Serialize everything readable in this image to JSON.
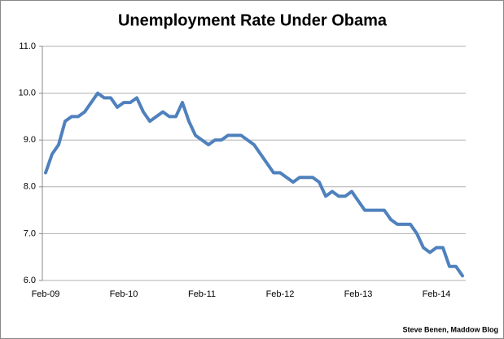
{
  "chart_data": {
    "type": "line",
    "title": "Unemployment Rate Under Obama",
    "source": "Steve Benen, Maddow Blog",
    "categories": [
      "Feb-09",
      null,
      null,
      null,
      null,
      null,
      null,
      null,
      null,
      null,
      null,
      null,
      "Feb-10",
      null,
      null,
      null,
      null,
      null,
      null,
      null,
      null,
      null,
      null,
      null,
      "Feb-11",
      null,
      null,
      null,
      null,
      null,
      null,
      null,
      null,
      null,
      null,
      null,
      "Feb-12",
      null,
      null,
      null,
      null,
      null,
      null,
      null,
      null,
      null,
      null,
      null,
      "Feb-13",
      null,
      null,
      null,
      null,
      null,
      null,
      null,
      null,
      null,
      null,
      null,
      "Feb-14",
      null,
      null,
      null,
      null
    ],
    "series": [
      {
        "name": "Unemployment Rate",
        "color": "#4f81bd",
        "values": [
          8.3,
          8.7,
          8.9,
          9.4,
          9.5,
          9.5,
          9.6,
          9.8,
          10.0,
          9.9,
          9.9,
          9.7,
          9.8,
          9.8,
          9.9,
          9.6,
          9.4,
          9.5,
          9.6,
          9.5,
          9.5,
          9.8,
          9.4,
          9.1,
          9.0,
          8.9,
          9.0,
          9.0,
          9.1,
          9.1,
          9.1,
          9.0,
          8.9,
          8.7,
          8.5,
          8.3,
          8.3,
          8.2,
          8.1,
          8.2,
          8.2,
          8.2,
          8.1,
          7.8,
          7.9,
          7.8,
          7.8,
          7.9,
          7.7,
          7.5,
          7.5,
          7.5,
          7.5,
          7.3,
          7.2,
          7.2,
          7.2,
          7.0,
          6.7,
          6.6,
          6.7,
          6.7,
          6.3,
          6.3,
          6.1
        ]
      }
    ],
    "ylim": [
      6,
      11
    ],
    "yticks": [
      {
        "value": 6,
        "label": "6.0"
      },
      {
        "value": 7,
        "label": "7.0"
      },
      {
        "value": 8,
        "label": "8.0"
      },
      {
        "value": 9,
        "label": "9.0"
      },
      {
        "value": 10,
        "label": "10.0"
      },
      {
        "value": 11,
        "label": "11.0"
      }
    ],
    "grid": true
  }
}
